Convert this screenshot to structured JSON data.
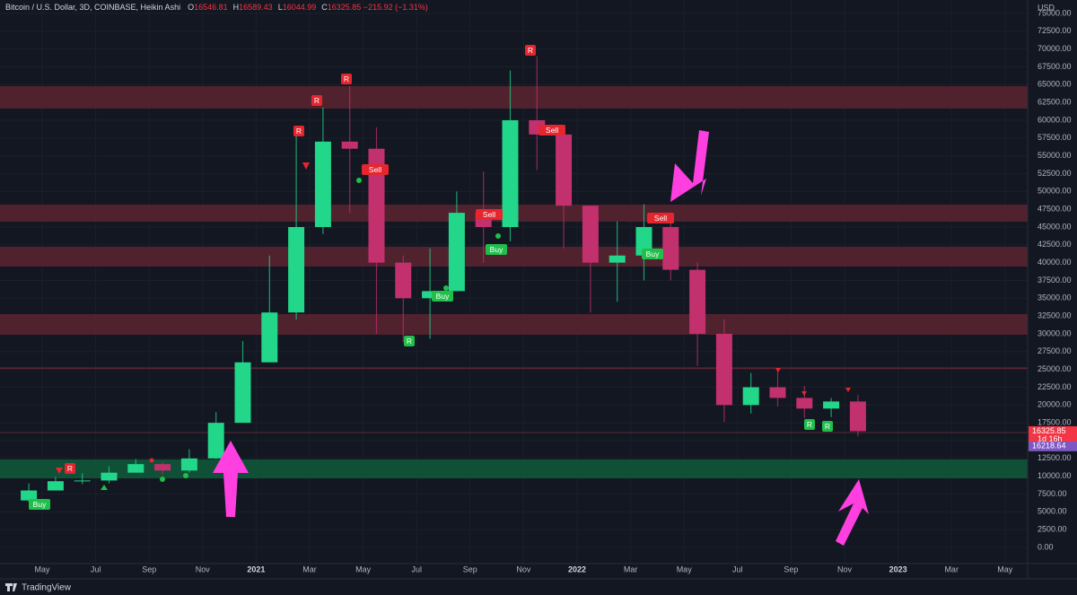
{
  "header": {
    "symbol": "Bitcoin / U.S. Dollar, 3D, COINBASE, Heikin Ashi",
    "ohlc": [
      {
        "label": "O",
        "value": 16546.81
      },
      {
        "label": "H",
        "value": 16589.43
      },
      {
        "label": "L",
        "value": 16044.99
      },
      {
        "label": "C",
        "value": 16325.85
      }
    ],
    "change": "−215.92 (−1.31%)"
  },
  "chart_data": {
    "type": "candlestick",
    "categories": [
      null,
      "May",
      null,
      "Jul",
      null,
      "Sep",
      null,
      "Nov",
      null,
      "2021",
      null,
      "Mar",
      null,
      "May",
      null,
      "Jul",
      null,
      "Sep",
      null,
      "Nov",
      null,
      "2022",
      null,
      "Mar",
      null,
      "May",
      null,
      "Jul",
      null,
      "Sep",
      null,
      "Nov",
      null,
      "2023",
      null,
      "Mar",
      null,
      "May"
    ],
    "open": [
      6600,
      8000,
      9300,
      9400,
      10500,
      11700,
      10800,
      12500,
      17500,
      26000,
      33000,
      45000,
      57000,
      56000,
      40000,
      35000,
      36000,
      47000,
      45000,
      60000,
      58000,
      48000,
      40000,
      41000,
      45000,
      39000,
      30000,
      20000,
      22500,
      21000,
      19500,
      20500,
      null,
      null,
      null,
      null,
      null,
      null
    ],
    "high": [
      9000,
      9900,
      10400,
      11400,
      12400,
      12000,
      13800,
      19000,
      29000,
      41000,
      58000,
      61800,
      64800,
      59000,
      41000,
      42000,
      50000,
      52800,
      67000,
      69000,
      59000,
      48000,
      45800,
      48200,
      47000,
      40000,
      32000,
      24500,
      25200,
      22700,
      21000,
      21400,
      null,
      null,
      null,
      null,
      null,
      null
    ],
    "low": [
      6400,
      8000,
      8900,
      9000,
      10500,
      10200,
      10500,
      12400,
      17500,
      26000,
      32000,
      44000,
      47000,
      30000,
      28800,
      29300,
      36000,
      40000,
      43000,
      53000,
      42000,
      33000,
      34500,
      37500,
      37500,
      25500,
      17600,
      18800,
      19800,
      18200,
      18300,
      15600,
      null,
      null,
      null,
      null,
      null,
      null
    ],
    "close": [
      8000,
      9300,
      9400,
      10500,
      11700,
      10800,
      12500,
      17500,
      26000,
      33000,
      45000,
      57000,
      56000,
      40000,
      35000,
      36000,
      47000,
      45000,
      60000,
      58000,
      48000,
      40000,
      41000,
      45000,
      39000,
      30000,
      20000,
      22500,
      21000,
      19500,
      20500,
      16325.85,
      null,
      null,
      null,
      null,
      null,
      null
    ],
    "up_color": "#22d68a",
    "down_color": "#c2306e",
    "y_unit": "USD",
    "ylim": [
      -2270,
      76890
    ],
    "yticks": [
      {
        "value": 0,
        "label": "0.00"
      },
      {
        "value": 2500,
        "label": "2500.00"
      },
      {
        "value": 5000,
        "label": "5000.00"
      },
      {
        "value": 7500,
        "label": "7500.00"
      },
      {
        "value": 10000,
        "label": "10000.00"
      },
      {
        "value": 12500,
        "label": "12500.00"
      },
      {
        "value": 15000,
        "label": "15000.00"
      },
      {
        "value": 17500,
        "label": "17500.00"
      },
      {
        "value": 20000,
        "label": "20000.00"
      },
      {
        "value": 22500,
        "label": "22500.00"
      },
      {
        "value": 25000,
        "label": "25000.00"
      },
      {
        "value": 27500,
        "label": "27500.00"
      },
      {
        "value": 30000,
        "label": "30000.00"
      },
      {
        "value": 32500,
        "label": "32500.00"
      },
      {
        "value": 35000,
        "label": "35000.00"
      },
      {
        "value": 37500,
        "label": "37500.00"
      },
      {
        "value": 40000,
        "label": "40000.00"
      },
      {
        "value": 42500,
        "label": "42500.00"
      },
      {
        "value": 45000,
        "label": "45000.00"
      },
      {
        "value": 47500,
        "label": "47500.00"
      },
      {
        "value": 50000,
        "label": "50000.00"
      },
      {
        "value": 52500,
        "label": "52500.00"
      },
      {
        "value": 55000,
        "label": "55000.00"
      },
      {
        "value": 57500,
        "label": "57500.00"
      },
      {
        "value": 60000,
        "label": "60000.00"
      },
      {
        "value": 62500,
        "label": "62500.00"
      },
      {
        "value": 65000,
        "label": "65000.00"
      },
      {
        "value": 67500,
        "label": "67500.00"
      },
      {
        "value": 70000,
        "label": "70000.00"
      },
      {
        "value": 72500,
        "label": "72500.00"
      },
      {
        "value": 75000,
        "label": "75000.00"
      }
    ],
    "zones": [
      {
        "range": [
          61640,
          64790
        ],
        "color": "#5c2430"
      },
      {
        "range": [
          45760,
          48150
        ],
        "color": "#5c2430"
      },
      {
        "range": [
          39450,
          42230
        ],
        "color": "#5c2430"
      },
      {
        "range": [
          29875,
          32775
        ],
        "color": "#5c2430"
      },
      {
        "range": [
          9700,
          12350
        ],
        "color": "#0f5a3a"
      }
    ],
    "levels": [
      {
        "value": 25200,
        "color": "#8a2a3c"
      },
      {
        "value": 16135,
        "color": "#5a2a3a"
      }
    ],
    "price_tags": [
      {
        "value": 16325.85,
        "countdown": "1d 16h",
        "color": "#f23645"
      },
      {
        "value": 16218.64,
        "color": "#7e57c2"
      }
    ],
    "signals": [
      {
        "text": "Buy",
        "color": "#1fbf4a"
      },
      {
        "text": "R",
        "color": "#e5262f"
      },
      {
        "text": "R",
        "color": "#e5262f"
      },
      {
        "text": "R",
        "color": "#e5262f"
      },
      {
        "text": "R",
        "color": "#e5262f"
      },
      {
        "text": "Sell",
        "color": "#e5262f"
      },
      {
        "text": "R",
        "color": "#1fbf4a"
      },
      {
        "text": "Buy",
        "color": "#1fbf4a"
      },
      {
        "text": "Sell",
        "color": "#e5262f"
      },
      {
        "text": "Buy",
        "color": "#1fbf4a"
      },
      {
        "text": "R",
        "color": "#e5262f"
      },
      {
        "text": "Sell",
        "color": "#e5262f"
      },
      {
        "text": "Sell",
        "color": "#e5262f"
      },
      {
        "text": "Buy",
        "color": "#1fbf4a"
      },
      {
        "text": "R",
        "color": "#1fbf4a"
      },
      {
        "text": "R",
        "color": "#1fbf4a"
      }
    ]
  },
  "footer": {
    "brand": "TradingView"
  }
}
